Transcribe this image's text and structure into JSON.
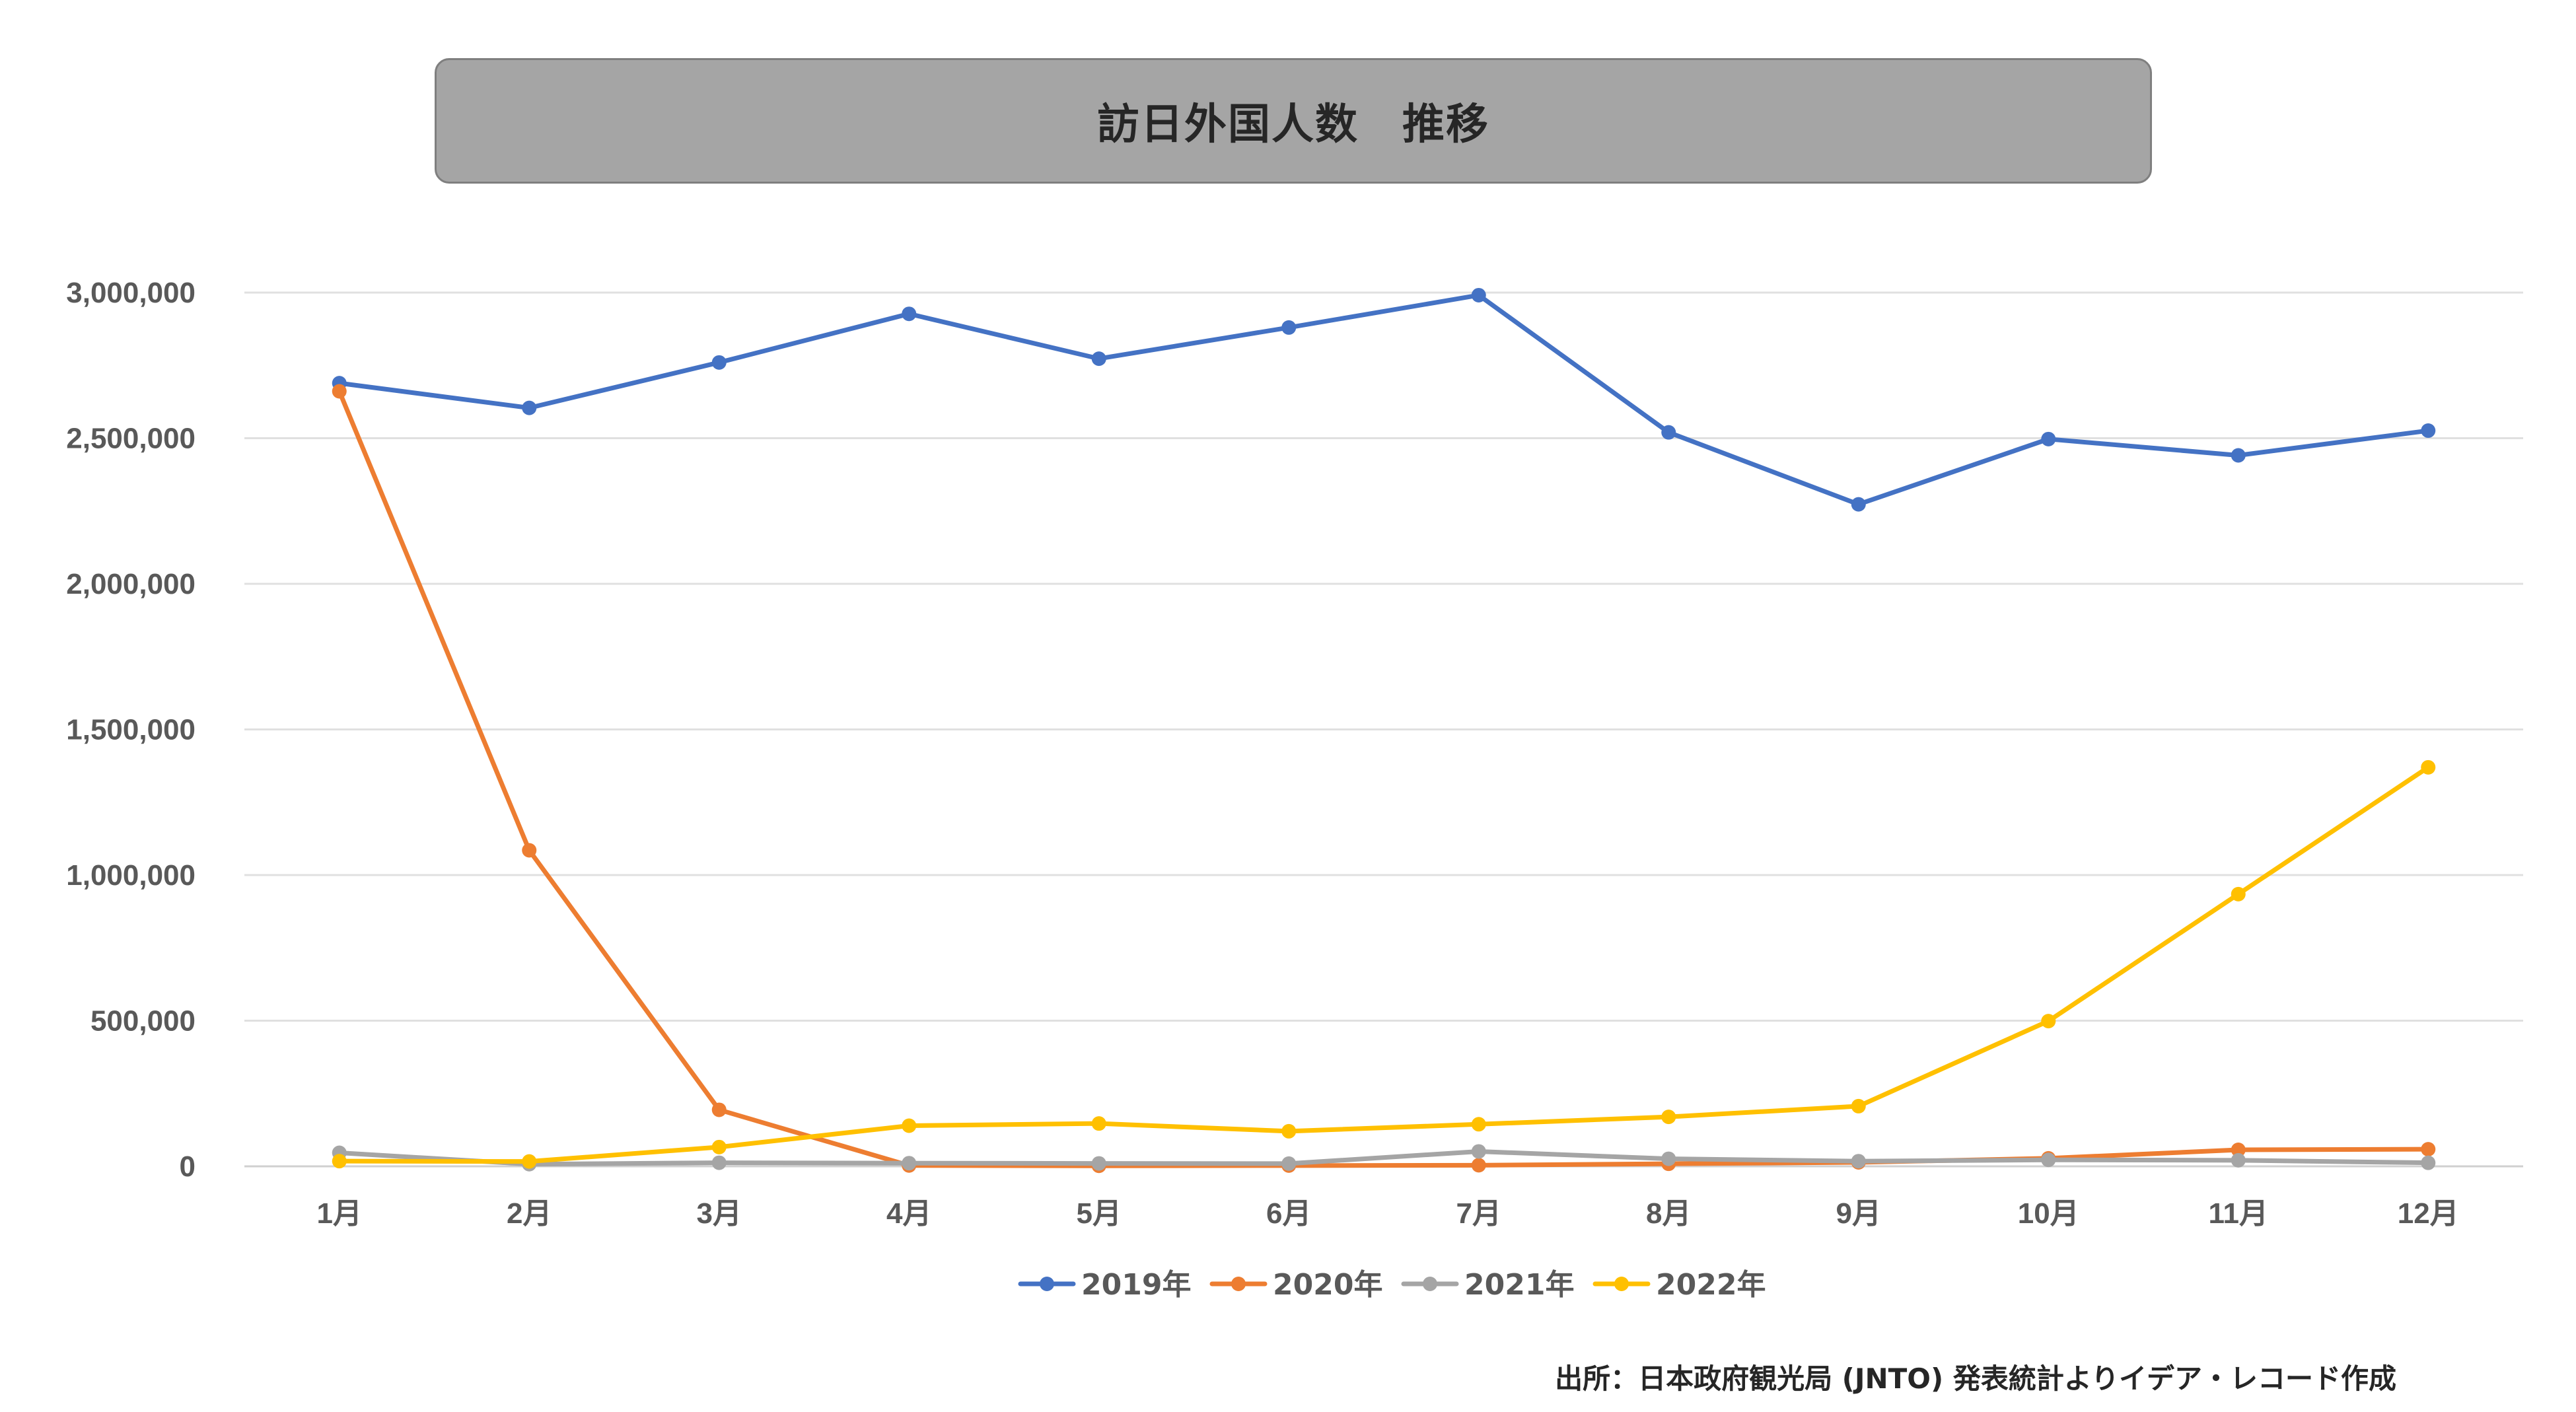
{
  "chart_data": {
    "type": "line",
    "title": "訪日外国人数　推移",
    "categories": [
      "1月",
      "2月",
      "3月",
      "4月",
      "5月",
      "6月",
      "7月",
      "8月",
      "9月",
      "10月",
      "11月",
      "12月"
    ],
    "ylim": [
      0,
      3000000
    ],
    "yticks": [
      0,
      500000,
      1000000,
      1500000,
      2000000,
      2500000,
      3000000
    ],
    "ytick_labels": [
      "0",
      "500,000",
      "1,000,000",
      "1,500,000",
      "2,000,000",
      "2,500,000",
      "3,000,000"
    ],
    "grid": "horizontal",
    "legend_position": "bottom",
    "series": [
      {
        "name": "2019年",
        "color": "#4472c4",
        "values": [
          2689000,
          2604000,
          2760000,
          2927000,
          2773000,
          2880000,
          2991000,
          2520000,
          2273000,
          2497000,
          2441000,
          2526000
        ]
      },
      {
        "name": "2020年",
        "color": "#ed7d31",
        "values": [
          2661000,
          1085000,
          194000,
          2900,
          1700,
          2600,
          3800,
          8700,
          13700,
          27400,
          56700,
          58700
        ]
      },
      {
        "name": "2021年",
        "color": "#a5a5a5",
        "values": [
          46500,
          7400,
          12300,
          10900,
          10000,
          9300,
          51100,
          25900,
          17700,
          22100,
          20700,
          12100
        ]
      },
      {
        "name": "2022年",
        "color": "#ffc000",
        "values": [
          17800,
          16700,
          66100,
          139500,
          147000,
          120400,
          144500,
          169800,
          206500,
          498600,
          934500,
          1370000
        ]
      }
    ]
  },
  "source": "出所：日本政府観光局 (JNTO) 発表統計よりイデア・レコード作成"
}
